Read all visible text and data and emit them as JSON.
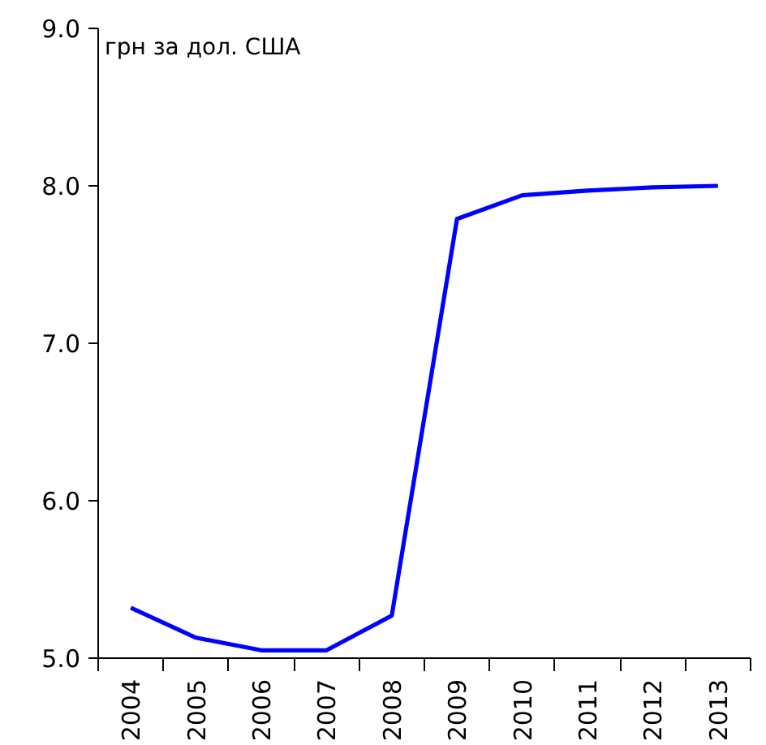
{
  "chart_data": {
    "type": "line",
    "ylabel": "грн за дол. США",
    "categories": [
      "2004",
      "2005",
      "2006",
      "2007",
      "2008",
      "2009",
      "2010",
      "2011",
      "2012",
      "2013"
    ],
    "series": [
      {
        "color": "#0000ff",
        "values": [
          5.32,
          5.13,
          5.05,
          5.05,
          5.27,
          7.79,
          7.94,
          7.97,
          7.99,
          8.0
        ]
      }
    ],
    "ylim": [
      5.0,
      9.0
    ],
    "yticks": [
      {
        "value": 5,
        "label": "5.0"
      },
      {
        "value": 6,
        "label": "6.0"
      },
      {
        "value": 7,
        "label": "7.0"
      },
      {
        "value": 8,
        "label": "8.0"
      },
      {
        "value": 9,
        "label": "9.0"
      }
    ],
    "grid": false,
    "marker": "none",
    "line_style": "solid"
  }
}
